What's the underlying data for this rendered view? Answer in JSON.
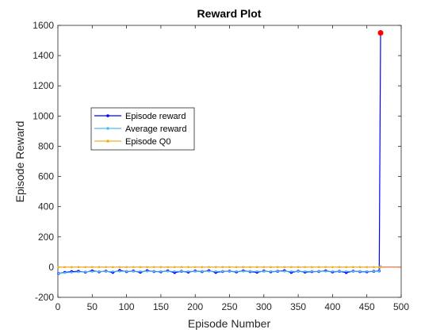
{
  "chart_data": {
    "type": "line",
    "title": "Reward Plot",
    "xlabel": "Episode Number",
    "ylabel": "Episode Reward",
    "xlim": [
      0,
      500
    ],
    "ylim": [
      -200,
      1600
    ],
    "xticks": [
      0,
      50,
      100,
      150,
      200,
      250,
      300,
      350,
      400,
      450,
      500
    ],
    "yticks": [
      -200,
      0,
      200,
      400,
      600,
      800,
      1000,
      1200,
      1400,
      1600
    ],
    "grid": false,
    "legend_position": "upper-left-inside",
    "x": [
      1,
      10,
      20,
      30,
      40,
      50,
      60,
      70,
      80,
      90,
      100,
      110,
      120,
      130,
      140,
      150,
      160,
      170,
      180,
      190,
      200,
      210,
      220,
      230,
      240,
      250,
      260,
      270,
      280,
      290,
      300,
      310,
      320,
      330,
      340,
      350,
      360,
      370,
      380,
      390,
      400,
      410,
      420,
      430,
      440,
      450,
      460,
      468,
      470
    ],
    "series": [
      {
        "name": "Episode reward",
        "color": "#0000ff",
        "marker": "dot",
        "values": [
          -42,
          -35,
          -30,
          -28,
          -33,
          -25,
          -31,
          -27,
          -35,
          -22,
          -30,
          -26,
          -34,
          -24,
          -29,
          -31,
          -25,
          -36,
          -28,
          -33,
          -26,
          -30,
          -24,
          -35,
          -29,
          -27,
          -32,
          -25,
          -30,
          -34,
          -26,
          -31,
          -28,
          -24,
          -35,
          -27,
          -33,
          -30,
          -29,
          -25,
          -32,
          -28,
          -36,
          -27,
          -30,
          -31,
          -28,
          -26,
          1550
        ]
      },
      {
        "name": "Average reward",
        "color": "#4dbeee",
        "marker": "dot",
        "values": [
          -42,
          -38,
          -35,
          -32,
          -31,
          -30,
          -29,
          -29,
          -29,
          -28,
          -28,
          -28,
          -28,
          -28,
          -28,
          -28,
          -28,
          -28,
          -28,
          -28,
          -28,
          -28,
          -28,
          -28,
          -28,
          -28,
          -28,
          -28,
          -28,
          -28,
          -28,
          -28,
          -28,
          -28,
          -28,
          -28,
          -28,
          -28,
          -28,
          -28,
          -28,
          -28,
          -28,
          -28,
          -28,
          -28,
          -28,
          -28,
          5
        ]
      },
      {
        "name": "Episode Q0",
        "color": "#edb120",
        "marker": "dot",
        "values": [
          0,
          0,
          0,
          0,
          0,
          0,
          0,
          0,
          0,
          0,
          0,
          0,
          0,
          0,
          0,
          0,
          0,
          0,
          0,
          0,
          0,
          0,
          0,
          0,
          0,
          0,
          0,
          0,
          0,
          0,
          0,
          0,
          0,
          0,
          0,
          0,
          0,
          0,
          0,
          0,
          0,
          0,
          0,
          0,
          0,
          0,
          0,
          0,
          0
        ]
      }
    ],
    "highlight_point": {
      "x": 470,
      "y": 1550,
      "color": "#ff0000"
    },
    "reference_line": {
      "y": 0,
      "color": "#d95319"
    }
  }
}
